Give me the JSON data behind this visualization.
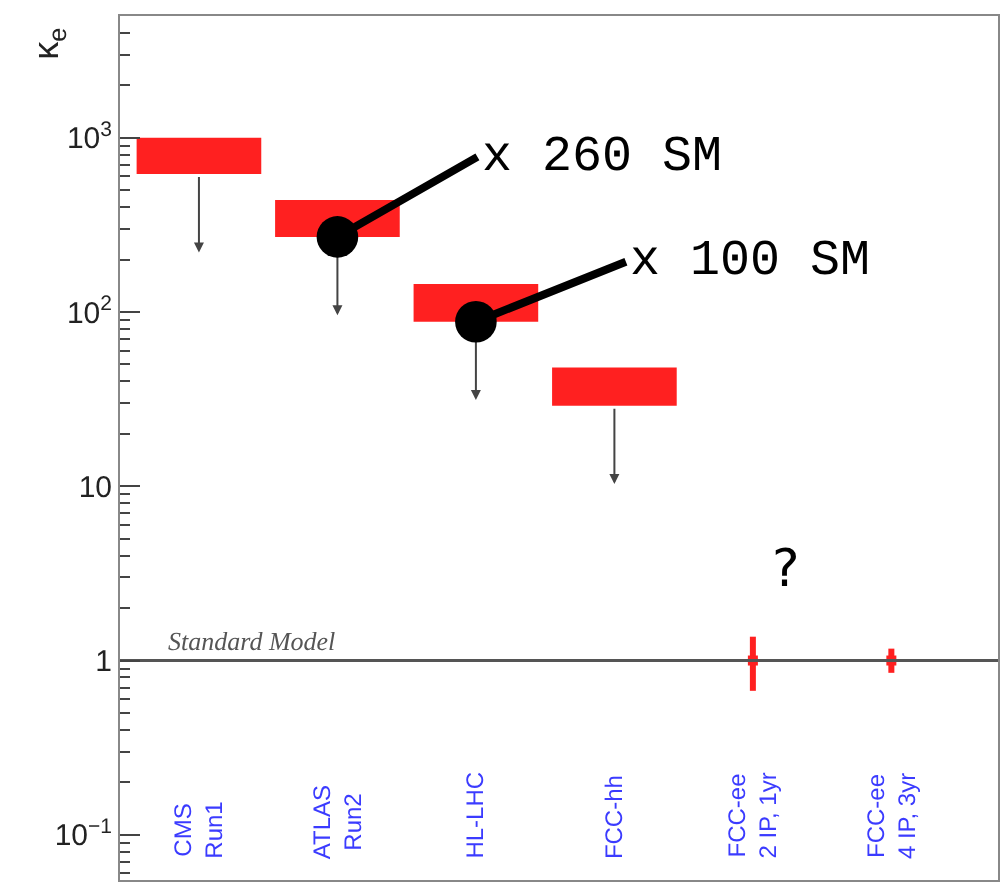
{
  "chart_data": {
    "type": "bar",
    "ylabel": "κ$_{e}$",
    "categories": [
      "CMS\nRun1",
      "ATLAS\nRun2",
      "HL-LHC",
      "FCC-hh",
      "FCC-ee\n2 IP, 1yr",
      "FCC-ee\n4 IP, 3yr"
    ],
    "series": [
      {
        "color": "#ff2020",
        "base": [
          620,
          270,
          88,
          29,
          null,
          null
        ],
        "values": [
          380,
          170,
          57,
          19,
          null,
          null
        ]
      },
      {
        "type": "scatter",
        "color": "#ff2020",
        "marker": "square",
        "values": [
          null,
          null,
          null,
          null,
          1,
          1
        ],
        "errors": [
          null,
          null,
          null,
          null,
          [
            0.67,
            1.37
          ],
          [
            0.85,
            1.17
          ]
        ]
      }
    ],
    "log": true,
    "ylim": [
      0.055,
      5000
    ],
    "yticks": [
      {
        "value": 0.1,
        "label": "10$^{−1}$"
      },
      1,
      10,
      {
        "value": 100,
        "label": "10$^{2}$"
      },
      {
        "value": 1000,
        "label": "10$^{3}$"
      }
    ],
    "ref_lines": [
      {
        "axis": "y",
        "value": 1,
        "label": "Standard Model",
        "color": "#555555"
      }
    ],
    "annotations": [
      {
        "text": "x 260 SM",
        "x": "ATLAS\nRun2",
        "y": 270
      },
      {
        "text": "x 100 SM",
        "x": "HL-LHC",
        "y": 88
      },
      "?"
    ],
    "legend": false
  }
}
